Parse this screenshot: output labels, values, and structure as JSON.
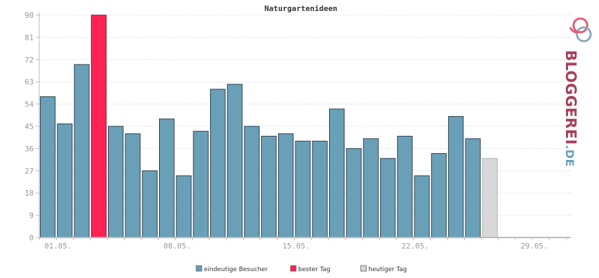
{
  "chart_data": {
    "type": "bar",
    "title": "Naturgartenideen",
    "xlabel": "",
    "ylabel": "",
    "ylim": [
      0,
      90
    ],
    "yticks": [
      0,
      9,
      18,
      27,
      36,
      45,
      54,
      63,
      72,
      81,
      90
    ],
    "xtick_labels": [
      "01.05.",
      "08.05.",
      "15.05.",
      "22.05.",
      "29.05."
    ],
    "xtick_day_index": [
      1,
      8,
      15,
      22,
      29
    ],
    "categories": [
      "01.05.",
      "02.05.",
      "03.05.",
      "04.05.",
      "05.05.",
      "06.05.",
      "07.05.",
      "08.05.",
      "09.05.",
      "10.05.",
      "11.05.",
      "12.05.",
      "13.05.",
      "14.05.",
      "15.05.",
      "16.05.",
      "17.05.",
      "18.05.",
      "19.05.",
      "20.05.",
      "21.05.",
      "22.05.",
      "23.05.",
      "24.05.",
      "25.05.",
      "26.05.",
      "27.05."
    ],
    "values": [
      57,
      46,
      70,
      90,
      45,
      42,
      27,
      48,
      25,
      43,
      60,
      62,
      45,
      41,
      42,
      39,
      39,
      52,
      36,
      40,
      32,
      41,
      25,
      34,
      49,
      40,
      32
    ],
    "bar_types": [
      "normal",
      "normal",
      "normal",
      "best",
      "normal",
      "normal",
      "normal",
      "normal",
      "normal",
      "normal",
      "normal",
      "normal",
      "normal",
      "normal",
      "normal",
      "normal",
      "normal",
      "normal",
      "normal",
      "normal",
      "normal",
      "normal",
      "normal",
      "normal",
      "normal",
      "normal",
      "today"
    ],
    "colors": {
      "normal": "#6a9fb8",
      "best": "#ff2255",
      "today": "#d8d8d8",
      "grid": "#cccccc",
      "axis": "#bbbbbb"
    },
    "grid": true,
    "legend_position": "bottom",
    "legend": [
      {
        "label": "eindeutige Besucher",
        "color": "#6a9fb8"
      },
      {
        "label": "bester Tag",
        "color": "#ff2255"
      },
      {
        "label": "heutiger Tag",
        "color": "#d8d8d8"
      }
    ]
  },
  "logo": {
    "text_main": "BLOGGEREI",
    "text_suffix": ".DE",
    "icon": "bloggerei-logo-icon"
  }
}
